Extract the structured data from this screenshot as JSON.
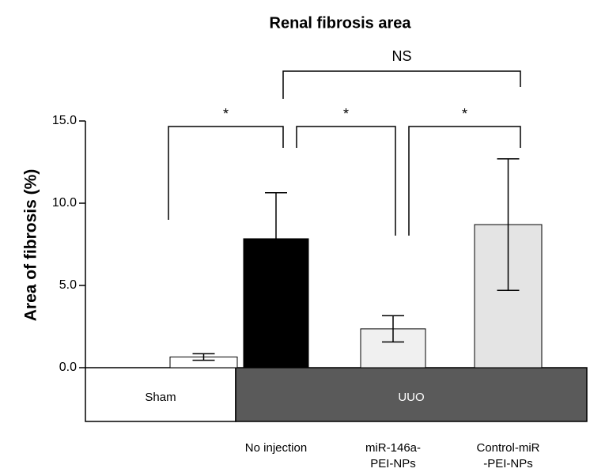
{
  "chart_data": {
    "type": "bar",
    "title": "Renal fibrosis area",
    "ylabel": "Area of fibrosis (%)",
    "categories": [
      null,
      [
        "No injection"
      ],
      [
        "miR-146a-",
        "PEI-NPs"
      ],
      [
        "Control-miR",
        "-PEI-NPs"
      ]
    ],
    "values": [
      0.65,
      7.84,
      2.36,
      8.7
    ],
    "errors": [
      0.2,
      2.8,
      0.8,
      4.0
    ],
    "colors": [
      "#ffffff",
      "#000000",
      "#f0f0f0",
      "#e4e4e4"
    ],
    "ylim": [
      0,
      15
    ],
    "yticks": [
      {
        "value": 0,
        "label": "0.0"
      },
      {
        "value": 5,
        "label": "5.0"
      },
      {
        "value": 10,
        "label": "10.0"
      },
      {
        "value": 15,
        "label": "15.0"
      }
    ],
    "groups": [
      {
        "label": "Sham",
        "from": 0,
        "to": 0
      },
      {
        "label": "UUO",
        "from": 1,
        "to": 3
      }
    ],
    "annotations": [
      {
        "label": "*",
        "from": 0,
        "to": 1
      },
      {
        "label": "*",
        "from": 1,
        "to": 2
      },
      {
        "label": "*",
        "from": 2,
        "to": 3
      },
      {
        "label": "NS",
        "from": 1,
        "to": 3
      }
    ]
  }
}
